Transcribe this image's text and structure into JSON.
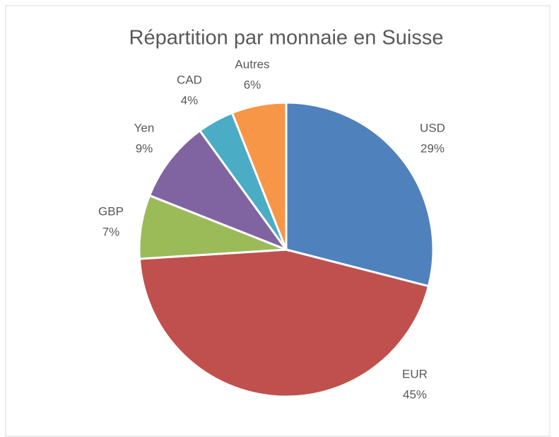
{
  "chart_data": {
    "type": "pie",
    "title": "Répartition par monnaie en Suisse",
    "categories": [
      "USD",
      "EUR",
      "GBP",
      "Yen",
      "CAD",
      "Autres"
    ],
    "values": [
      29,
      45,
      7,
      9,
      4,
      6
    ],
    "value_labels": [
      "29%",
      "45%",
      "7%",
      "9%",
      "4%",
      "6%"
    ],
    "colors": [
      "#4f81bd",
      "#c0504d",
      "#9bbb59",
      "#8064a2",
      "#4bacc6",
      "#f79646"
    ]
  }
}
